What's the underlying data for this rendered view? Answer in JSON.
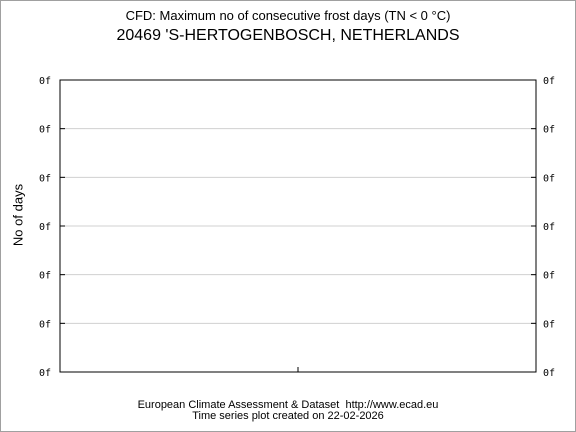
{
  "chart_data": {
    "type": "line",
    "title": "CFD: Maximum no of consecutive frost days (TN < 0 °C)",
    "subtitle": "20469 'S-HERTOGENBOSCH, NETHERLANDS",
    "ylabel": "No of days",
    "xlabel": "",
    "y_tick_labels": [
      "0f",
      "0f",
      "0f",
      "0f",
      "0f",
      "0f",
      "0f"
    ],
    "series": [],
    "grid": true,
    "colors": {
      "grid": "#d0d0d0",
      "axis": "#000000"
    }
  },
  "footer": {
    "line1": "European Climate Assessment & Dataset  http://www.ecad.eu",
    "line2": "Time series plot created on 22-02-2026"
  }
}
